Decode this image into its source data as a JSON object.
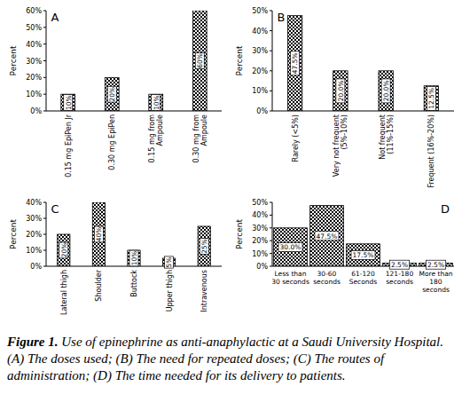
{
  "chart_data": [
    {
      "type": "bar",
      "title": "A",
      "y_label": "Percent",
      "categories": [
        "0.15 mg EpiPen Jr",
        "0.30 mg EpiPen",
        "0.15 mg from Ampoule",
        "0.30 mg from Ampoule"
      ],
      "values": [
        10,
        20,
        10,
        60
      ],
      "value_labels": [
        "10%",
        "20%",
        "10%",
        "60%"
      ],
      "ylim": [
        0,
        60
      ],
      "yticks": [
        {
          "value": 0,
          "label": "0%"
        },
        {
          "value": 10,
          "label": "10%"
        },
        {
          "value": 20,
          "label": "20%"
        },
        {
          "value": 30,
          "label": "30%"
        },
        {
          "value": 40,
          "label": "40%"
        },
        {
          "value": 50,
          "label": "50%"
        },
        {
          "value": 60,
          "label": "60%"
        }
      ],
      "color": "#000000",
      "data_labels": true
    },
    {
      "type": "bar",
      "title": "B",
      "y_label": "Percent",
      "categories": [
        "Rarely (<5%)",
        "Very not frequent (5%-10%)",
        "Not frequent (11%-15%)",
        "Frequent (16%-20%)"
      ],
      "values": [
        47.5,
        20.0,
        20.0,
        12.5
      ],
      "value_labels": [
        "47.5%",
        "20.0%",
        "20.0%",
        "12.5%"
      ],
      "ylim": [
        0,
        50
      ],
      "yticks": [
        {
          "value": 0,
          "label": "0%"
        },
        {
          "value": 10,
          "label": "10%"
        },
        {
          "value": 20,
          "label": "20%"
        },
        {
          "value": 30,
          "label": "30%"
        },
        {
          "value": 40,
          "label": "40%"
        },
        {
          "value": 50,
          "label": "50%"
        }
      ],
      "color": "#000000",
      "data_labels": true
    },
    {
      "type": "bar",
      "title": "C",
      "y_label": "Percent",
      "categories": [
        "Lateral thigh",
        "Shoulder",
        "Buttock",
        "Upper thigh",
        "Intravenous"
      ],
      "values": [
        20,
        40,
        10,
        5,
        25
      ],
      "value_labels": [
        "20%",
        "40%",
        "10%",
        "5%",
        "25%"
      ],
      "ylim": [
        0,
        40
      ],
      "yticks": [
        {
          "value": 0,
          "label": "0%"
        },
        {
          "value": 10,
          "label": "10%"
        },
        {
          "value": 20,
          "label": "20%"
        },
        {
          "value": 30,
          "label": "30%"
        },
        {
          "value": 40,
          "label": "40%"
        }
      ],
      "color": "#000000",
      "data_labels": true
    },
    {
      "type": "bar",
      "title": "D",
      "y_label": "Percent",
      "categories": [
        "Less than 30 seconds",
        "30-60 seconds",
        "61-120 Seconds",
        "121-180 seconds",
        "More than 180 seconds"
      ],
      "values": [
        30.0,
        47.5,
        17.5,
        2.5,
        2.5
      ],
      "value_labels": [
        "30.0%",
        "47.5%",
        "17.5%",
        "2.5%",
        "2.5%"
      ],
      "ylim": [
        0,
        50
      ],
      "yticks": [
        {
          "value": 0,
          "label": "0%"
        },
        {
          "value": 10,
          "label": "10%"
        },
        {
          "value": 20,
          "label": "20%"
        },
        {
          "value": 30,
          "label": "30%"
        },
        {
          "value": 40,
          "label": "40%"
        },
        {
          "value": 50,
          "label": "50%"
        }
      ],
      "color": "#000000",
      "data_labels": true
    }
  ],
  "caption": {
    "label": "Figure 1.",
    "text": "Use of epinephrine as anti-anaphylactic at a Saudi University Hospital. (A) The doses used; (B) The need for repeated doses; (C) The routes of administration; (D) The time needed for its delivery to patients."
  }
}
